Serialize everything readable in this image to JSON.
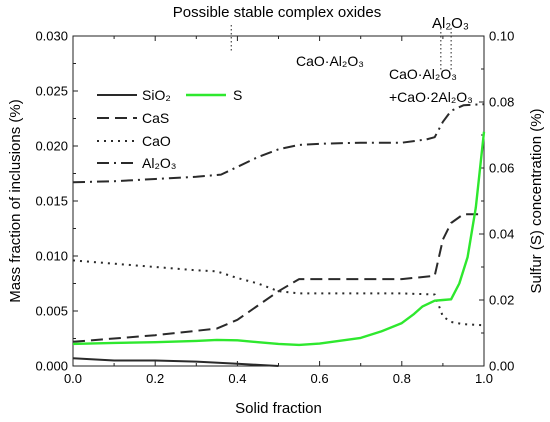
{
  "chart_data": {
    "type": "line",
    "xlabel": "Solid fraction",
    "ylabel_left": "Mass fraction of inclusions (%)",
    "ylabel_right": "Sulfur (S) concentration (%)",
    "xlim": [
      0.0,
      1.0
    ],
    "ylim_left": [
      0.0,
      0.03
    ],
    "ylim_right": [
      0.0,
      0.1
    ],
    "x_ticks": [
      "0.0",
      "0.2",
      "0.4",
      "0.6",
      "0.8",
      "1.0"
    ],
    "y_left_ticks": [
      "0.000",
      "0.005",
      "0.010",
      "0.015",
      "0.020",
      "0.025",
      "0.030"
    ],
    "y_right_ticks": [
      "0.00",
      "0.02",
      "0.04",
      "0.06",
      "0.08",
      "0.10"
    ],
    "grid": false,
    "legend_position": "top-left",
    "series": [
      {
        "name": "SiO₂",
        "axis": "left",
        "style": "solid",
        "color": "#2a2a2a",
        "x": [
          0.0,
          0.05,
          0.1,
          0.2,
          0.3,
          0.4,
          0.45,
          0.5
        ],
        "y": [
          0.0007,
          0.0006,
          0.0005,
          0.0005,
          0.0004,
          0.0002,
          0.0001,
          0.0
        ]
      },
      {
        "name": "CaS",
        "axis": "left",
        "style": "dashed",
        "color": "#2a2a2a",
        "x": [
          0.0,
          0.1,
          0.2,
          0.3,
          0.35,
          0.4,
          0.45,
          0.5,
          0.55,
          0.6,
          0.7,
          0.8,
          0.88,
          0.9,
          0.92,
          0.95,
          1.0
        ],
        "y": [
          0.0022,
          0.0025,
          0.0028,
          0.0032,
          0.0034,
          0.0042,
          0.0055,
          0.0068,
          0.0079,
          0.0079,
          0.0079,
          0.0079,
          0.0082,
          0.0115,
          0.013,
          0.0138,
          0.0138
        ]
      },
      {
        "name": "CaO",
        "axis": "left",
        "style": "dotted",
        "color": "#2a2a2a",
        "x": [
          0.0,
          0.1,
          0.2,
          0.3,
          0.35,
          0.4,
          0.45,
          0.5,
          0.55,
          0.6,
          0.7,
          0.8,
          0.88,
          0.9,
          0.92,
          0.95,
          1.0
        ],
        "y": [
          0.0096,
          0.0093,
          0.009,
          0.0087,
          0.0086,
          0.008,
          0.0075,
          0.0068,
          0.0066,
          0.0066,
          0.0066,
          0.0066,
          0.0065,
          0.0045,
          0.004,
          0.0038,
          0.0037
        ]
      },
      {
        "name": "Al₂O₃",
        "axis": "left",
        "style": "dashdot",
        "color": "#2a2a2a",
        "x": [
          0.0,
          0.1,
          0.2,
          0.3,
          0.36,
          0.4,
          0.45,
          0.5,
          0.55,
          0.6,
          0.7,
          0.8,
          0.86,
          0.88,
          0.9,
          0.92,
          0.95,
          1.0
        ],
        "y": [
          0.0167,
          0.0168,
          0.017,
          0.0172,
          0.0174,
          0.0181,
          0.019,
          0.0197,
          0.0201,
          0.0202,
          0.0203,
          0.0203,
          0.0206,
          0.0208,
          0.0222,
          0.0232,
          0.0237,
          0.0238
        ]
      },
      {
        "name": "S",
        "axis": "right",
        "style": "solid",
        "color": "#2ee82e",
        "x": [
          0.0,
          0.1,
          0.2,
          0.3,
          0.35,
          0.4,
          0.45,
          0.5,
          0.55,
          0.6,
          0.7,
          0.75,
          0.8,
          0.83,
          0.85,
          0.88,
          0.9,
          0.92,
          0.94,
          0.96,
          0.98,
          1.0
        ],
        "y": [
          0.0067,
          0.007,
          0.0072,
          0.0076,
          0.0079,
          0.0078,
          0.0072,
          0.0067,
          0.0064,
          0.0068,
          0.0085,
          0.0105,
          0.013,
          0.0158,
          0.018,
          0.0198,
          0.02,
          0.0202,
          0.025,
          0.033,
          0.048,
          0.071
        ]
      }
    ],
    "annotations": {
      "header": "Possible stable complex oxides",
      "cao_al2o3": "CaO·Al₂O₃",
      "cao_al2o3_combo_line1": "CaO·Al₂O₃",
      "cao_al2o3_combo_line2": "+CaO·2Al₂O₃",
      "al2o3": "Al₂O₃"
    },
    "annotation_markers_x": [
      0.385,
      0.895,
      0.92
    ]
  }
}
